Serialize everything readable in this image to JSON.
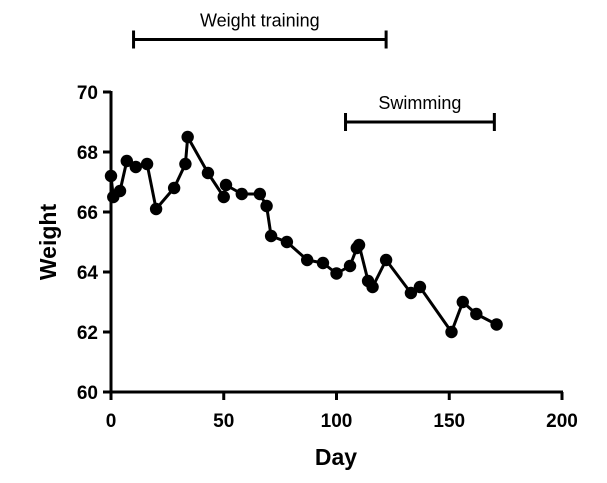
{
  "chart_data": {
    "type": "line",
    "title": "",
    "xlabel": "Day",
    "ylabel": "Weight",
    "xlim": [
      0,
      200
    ],
    "ylim": [
      60,
      70
    ],
    "xticks": [
      0,
      50,
      100,
      150,
      200
    ],
    "yticks": [
      60,
      62,
      64,
      66,
      68,
      70
    ],
    "grid": false,
    "marker": "circle",
    "line_color": "#000000",
    "marker_color": "#000000",
    "series": [
      {
        "x": [
          0,
          1,
          4,
          7,
          11,
          16,
          20,
          28,
          33,
          34,
          43,
          50,
          51,
          58,
          66,
          69,
          71,
          78,
          87,
          94,
          100,
          106,
          109,
          110,
          114,
          116,
          122,
          133,
          137,
          151,
          156,
          162,
          171
        ],
        "y": [
          67.2,
          66.5,
          66.7,
          67.7,
          67.5,
          67.6,
          66.1,
          66.8,
          67.6,
          68.5,
          67.3,
          66.5,
          66.9,
          66.6,
          66.6,
          66.2,
          65.2,
          65.0,
          64.4,
          64.3,
          63.95,
          64.2,
          64.8,
          64.9,
          63.7,
          63.5,
          64.4,
          63.3,
          63.5,
          62.0,
          63.0,
          62.6,
          62.25
        ]
      }
    ],
    "annotations": [
      {
        "label": "Weight training",
        "x_start": 10,
        "x_end": 122,
        "y": 71.75
      },
      {
        "label": "Swimming",
        "x_start": 104,
        "x_end": 170,
        "y": 69.0
      }
    ]
  }
}
